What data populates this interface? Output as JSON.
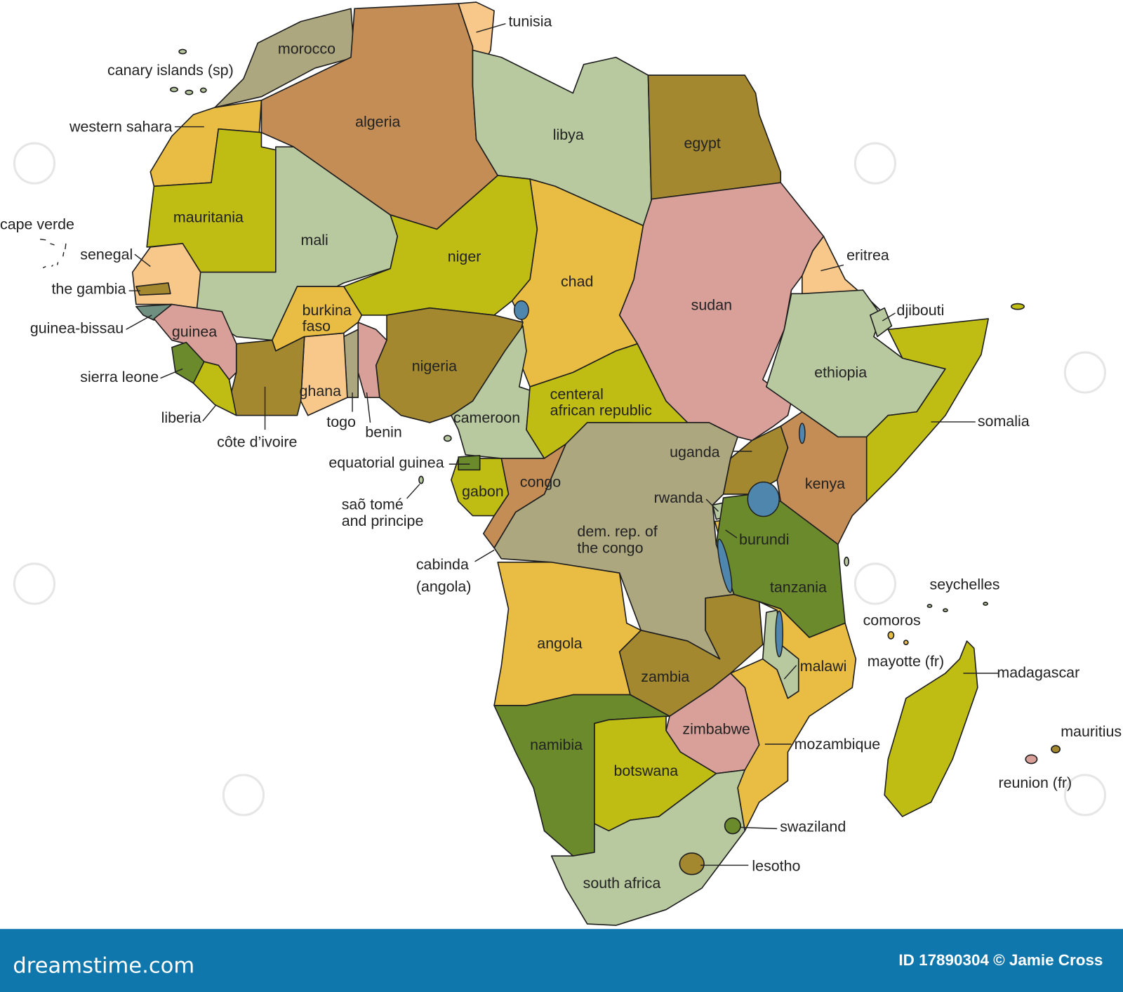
{
  "colors": {
    "footer_bar": "#1077ad",
    "lakes": "#4f86ad",
    "footer_text": "#ffffff"
  },
  "labels": {
    "tunisia": "tunisia",
    "morocco": "morocco",
    "canary_islands": "canary islands (sp)",
    "algeria": "algeria",
    "libya": "libya",
    "egypt": "egypt",
    "western_sahara": "western sahara",
    "mauritania": "mauritania",
    "mali": "mali",
    "niger": "niger",
    "chad": "chad",
    "sudan": "sudan",
    "eritrea": "eritrea",
    "djibouti": "djibouti",
    "cape_verde": "cape verde",
    "senegal": "senegal",
    "the_gambia": "the gambia",
    "guinea_bissau": "guinea-bissau",
    "guinea": "guinea",
    "burkina_faso": [
      "burkina",
      "faso"
    ],
    "nigeria": "nigeria",
    "ethiopia": "ethiopia",
    "sierra_leone": "sierra leone",
    "ghana": "ghana",
    "liberia": "liberia",
    "togo": "togo",
    "benin": "benin",
    "cote_divoire": "côte d’ivoire",
    "cameroon": "cameroon",
    "central_african_republic": [
      "centeral",
      "african republic"
    ],
    "somalia": "somalia",
    "uganda": "uganda",
    "equatorial_guinea": "equatorial guinea",
    "kenya": "kenya",
    "gabon": "gabon",
    "congo": "congo",
    "rwanda": "rwanda",
    "sao_tome": [
      "saõ tomé",
      "and principe"
    ],
    "dem_rep_congo": [
      "dem. rep. of",
      "the congo"
    ],
    "burundi": "burundi",
    "cabinda": [
      "cabinda",
      "(angola)"
    ],
    "tanzania": "tanzania",
    "seychelles": "seychelles",
    "comoros": "comoros",
    "angola": "angola",
    "mayotte": "mayotte (fr)",
    "malawi": "malawi",
    "madagascar": "madagascar",
    "zambia": "zambia",
    "zimbabwe": "zimbabwe",
    "mauritius": "mauritius",
    "namibia": "namibia",
    "mozambique": "mozambique",
    "botswana": "botswana",
    "reunion": "reunion (fr)",
    "swaziland": "swaziland",
    "lesotho": "lesotho",
    "south_africa": "south africa"
  },
  "footer": {
    "brand": "dreamstime.com",
    "credit": "ID 17890304 © Jamie Cross"
  }
}
